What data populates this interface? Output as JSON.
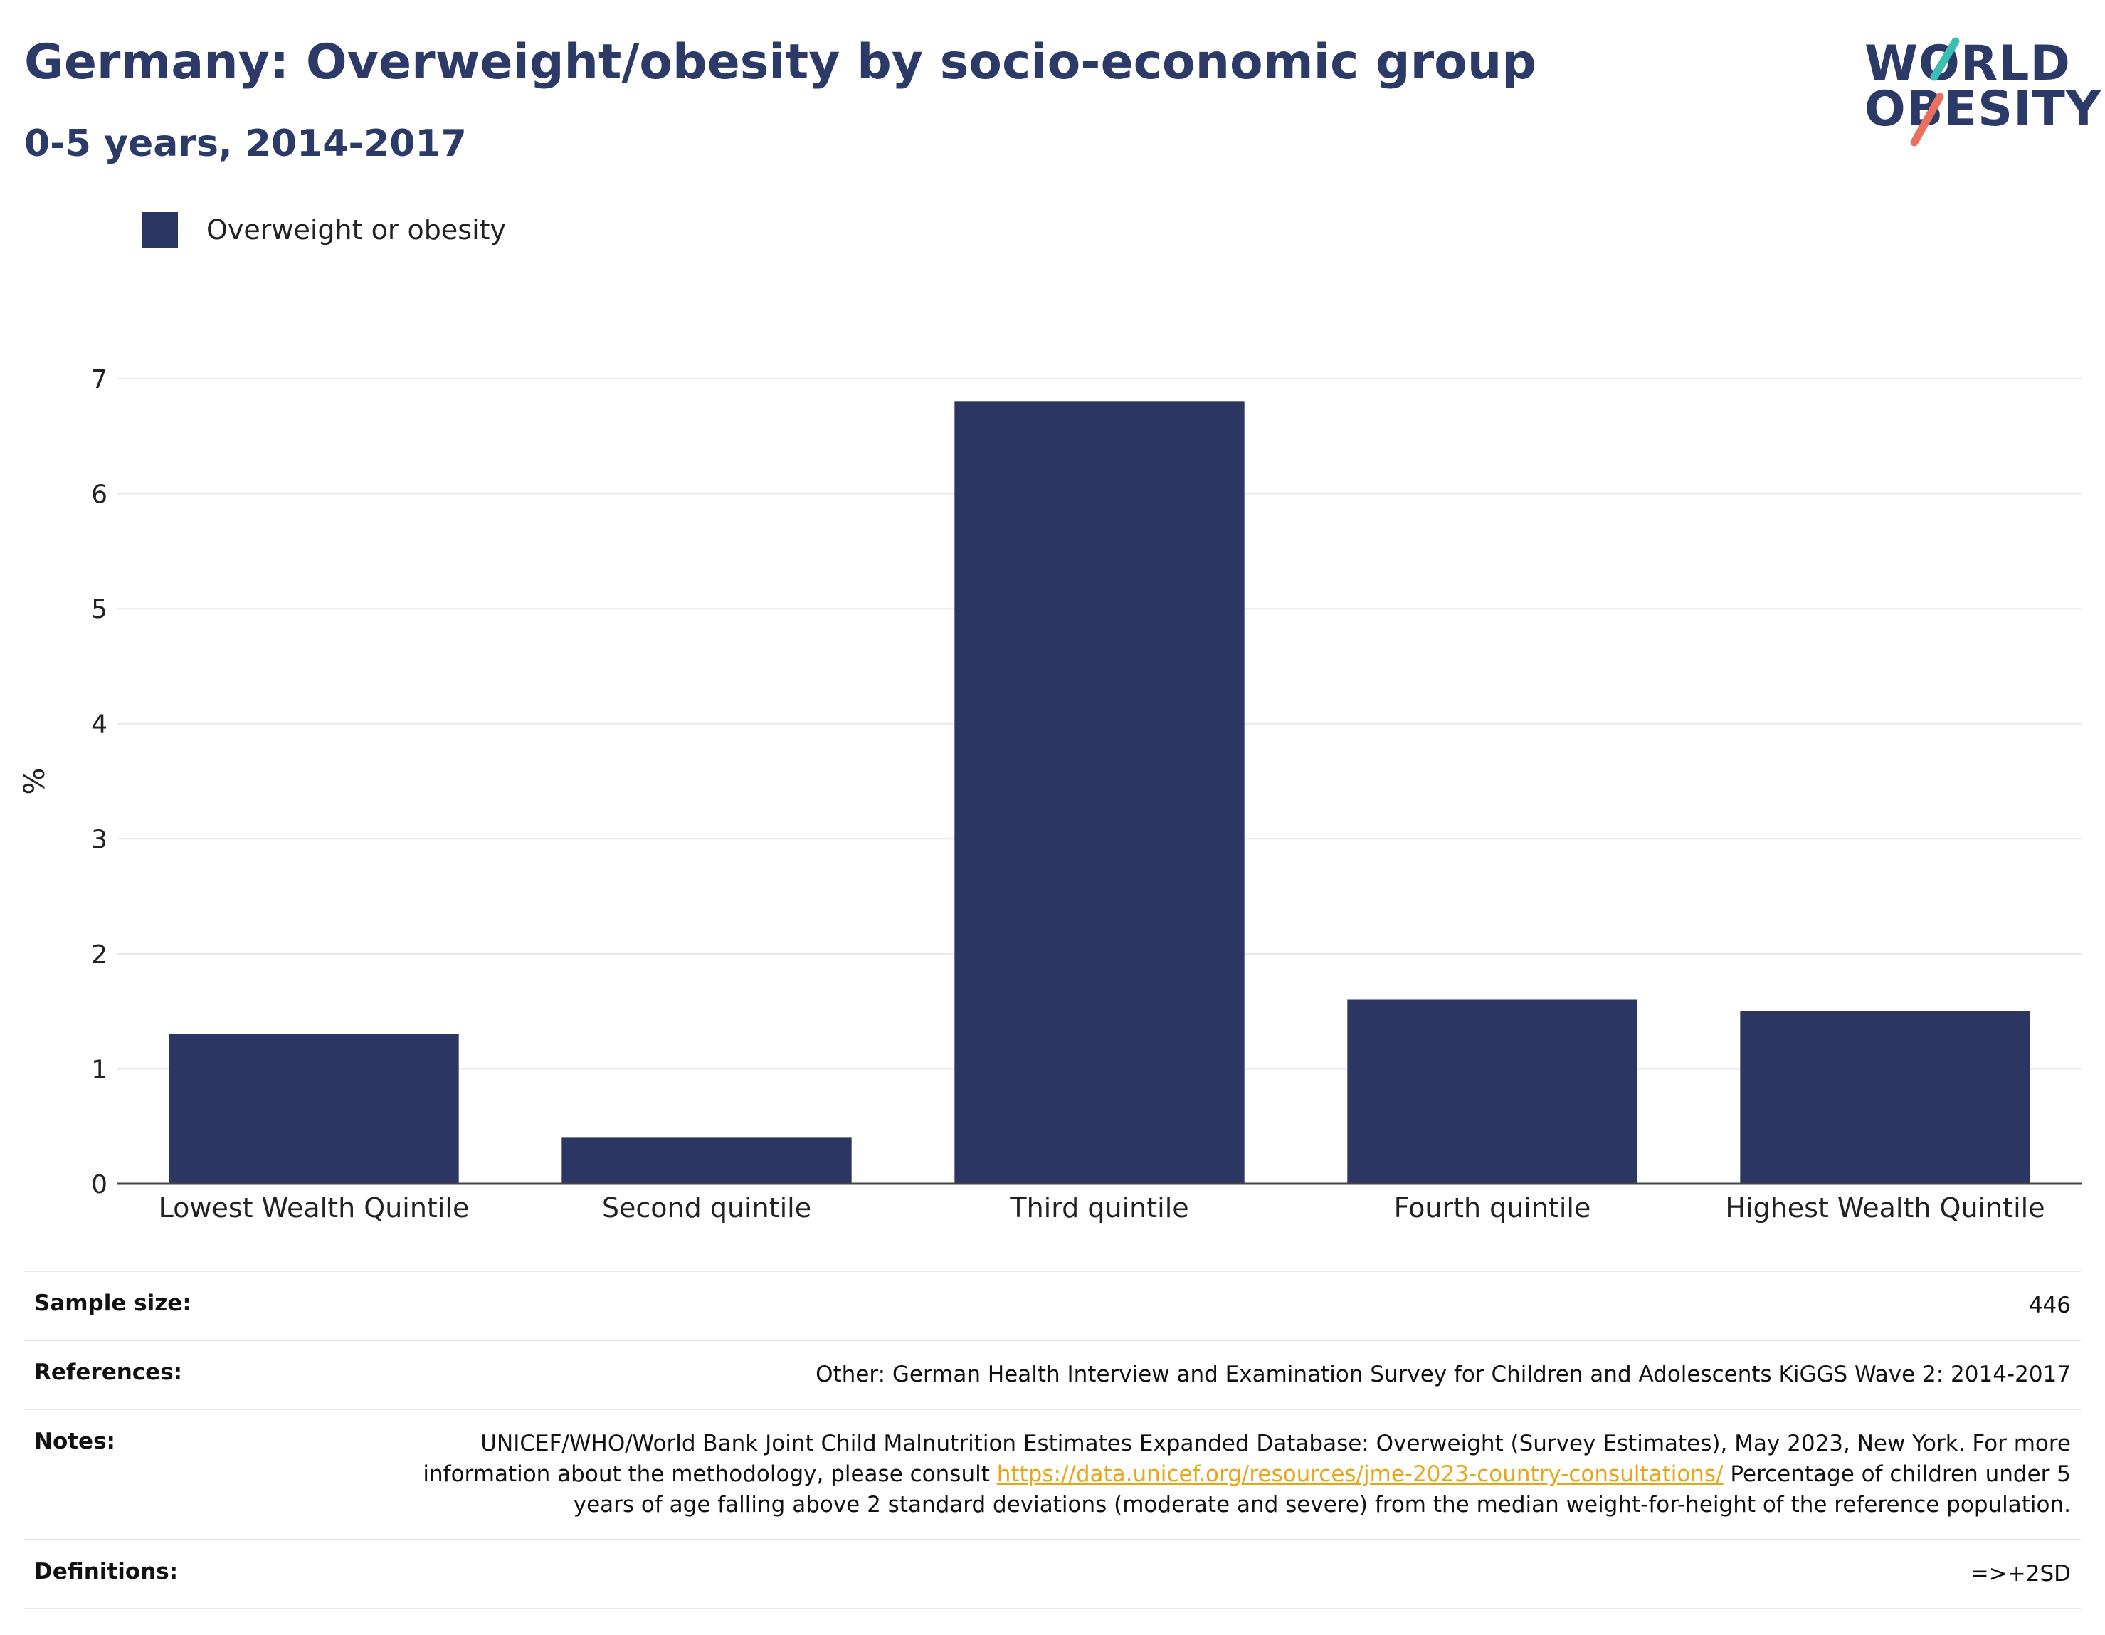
{
  "header": {
    "title": "Germany: Overweight/obesity by socio-economic group",
    "subtitle": "0-5 years, 2014-2017"
  },
  "logo": {
    "line1": "WORLD",
    "line2": "OBESITY",
    "colors": {
      "text": "#2b3a66",
      "teal": "#3bbfb3",
      "coral": "#e9705f"
    }
  },
  "legend": [
    {
      "label": "Overweight or obesity",
      "color": "#2b3762"
    }
  ],
  "chart_data": {
    "type": "bar",
    "title": "Germany: Overweight/obesity by socio-economic group",
    "subtitle": "0-5 years, 2014-2017",
    "categories": [
      "Lowest Wealth Quintile",
      "Second quintile",
      "Third quintile",
      "Fourth quintile",
      "Highest Wealth Quintile"
    ],
    "series": [
      {
        "name": "Overweight or obesity",
        "color": "#2b3762",
        "values": [
          1.3,
          0.4,
          6.8,
          1.6,
          1.5
        ]
      }
    ],
    "xlabel": "",
    "ylabel": "%",
    "ylim": [
      0,
      7
    ],
    "yticks": [
      0,
      1,
      2,
      3,
      4,
      5,
      6,
      7
    ],
    "grid": true,
    "legend_position": "top-left"
  },
  "info": {
    "sample_size": {
      "label": "Sample size:",
      "value": "446"
    },
    "references": {
      "label": "References:",
      "value": "Other: German Health Interview and Examination Survey for Children and Adolescents KiGGS Wave 2: 2014-2017"
    },
    "notes": {
      "label": "Notes:",
      "text_before": "UNICEF/WHO/World Bank Joint Child Malnutrition Estimates Expanded Database: Overweight (Survey Estimates), May 2023, New York. For more information about the methodology, please consult ",
      "link": "https://data.unicef.org/resources/jme-2023-country-consultations/",
      "text_after": " Percentage of children under 5 years of age falling above 2 standard deviations (moderate and severe) from the median weight-for-height of the reference population."
    },
    "definitions": {
      "label": "Definitions:",
      "value": "=>+2SD"
    }
  }
}
